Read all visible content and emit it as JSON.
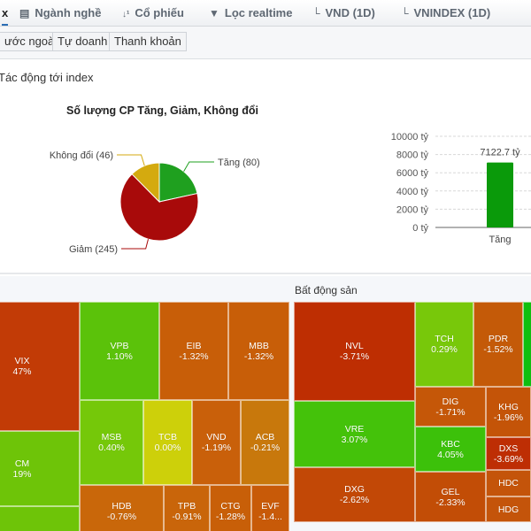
{
  "tabs": [
    {
      "label": "x",
      "icon": "close-icon",
      "active": true
    },
    {
      "label": "Ngành nghề",
      "icon": "list-icon"
    },
    {
      "label": "Cổ phiếu",
      "icon": "sort-numeric-icon"
    },
    {
      "label": "Lọc realtime",
      "icon": "filter-icon"
    },
    {
      "label": "VND (1D)",
      "icon": "chart-icon"
    },
    {
      "label": "VNINDEX (1D)",
      "icon": "chart-icon"
    }
  ],
  "subtabs": [
    "ước ngoài",
    "Tự doanh",
    "Thanh khoản"
  ],
  "section_title": "Tác động tới index",
  "colors": {
    "up": "#1fa01f",
    "down": "#a80a0a",
    "unchanged": "#d4aa0f",
    "bar": "#0a9a0a",
    "active_tab": "#2a6db5"
  },
  "chart_data": [
    {
      "type": "pie",
      "title": "Số lượng CP Tăng, Giảm, Không đổi",
      "slices": [
        {
          "name": "Tăng",
          "value": 80,
          "label": "Tăng (80)",
          "color": "#1fa01f"
        },
        {
          "name": "Giảm",
          "value": 245,
          "label": "Giảm (245)",
          "color": "#a80a0a"
        },
        {
          "name": "Không đổi",
          "value": 46,
          "label": "Không đổi (46)",
          "color": "#d4aa0f"
        }
      ]
    },
    {
      "type": "bar",
      "categories": [
        "Tăng"
      ],
      "values": [
        7122.7
      ],
      "data_labels": [
        "7122.7 tỷ"
      ],
      "yticks": [
        "0 tỷ",
        "2000 tỷ",
        "4000 tỷ",
        "6000 tỷ",
        "8000 tỷ",
        "10000 tỷ"
      ],
      "ylim": [
        0,
        10000
      ],
      "grid": true
    }
  ],
  "treemaps": {
    "left": {
      "cells": [
        {
          "ticker": "VIX",
          "change": "47%",
          "color": "#c23b06"
        },
        {
          "ticker": "VPB",
          "change": "1.10%",
          "color": "#5bc20a"
        },
        {
          "ticker": "EIB",
          "change": "-1.32%",
          "color": "#c85e08"
        },
        {
          "ticker": "MBB",
          "change": "-1.32%",
          "color": "#c85e08"
        },
        {
          "ticker": "CM",
          "change": "19%",
          "color": "#6ec408"
        },
        {
          "ticker": "MSB",
          "change": "0.40%",
          "color": "#75c809"
        },
        {
          "ticker": "TCB",
          "change": "0.00%",
          "color": "#cdd00a"
        },
        {
          "ticker": "VND",
          "change": "-1.19%",
          "color": "#c9600a"
        },
        {
          "ticker": "ACB",
          "change": "-0.21%",
          "color": "#c8780c"
        },
        {
          "ticker": "HDB",
          "change": "-0.76%",
          "color": "#c9670a"
        },
        {
          "ticker": "TPB",
          "change": "-0.91%",
          "color": "#c9650a"
        },
        {
          "ticker": "CTG",
          "change": "-1.28%",
          "color": "#c85f08"
        },
        {
          "ticker": "EVF",
          "change": "-1.4...",
          "color": "#c85a08"
        },
        {
          "ticker": "",
          "change": "",
          "color": "#6ec408"
        }
      ]
    },
    "right": {
      "title": "Bất động sản",
      "cells": [
        {
          "ticker": "NVL",
          "change": "-3.71%",
          "color": "#be2e02"
        },
        {
          "ticker": "TCH",
          "change": "0.29%",
          "color": "#78c80a"
        },
        {
          "ticker": "PDR",
          "change": "-1.52%",
          "color": "#c45a08"
        },
        {
          "ticker": "",
          "change": "",
          "color": "#0fbf0f"
        },
        {
          "ticker": "VRE",
          "change": "3.07%",
          "color": "#44c20a"
        },
        {
          "ticker": "DIG",
          "change": "-1.71%",
          "color": "#c55708"
        },
        {
          "ticker": "KHG",
          "change": "-1.96%",
          "color": "#c45408"
        },
        {
          "ticker": "KBC",
          "change": "4.05%",
          "color": "#3cc10a"
        },
        {
          "ticker": "DXS",
          "change": "-3.69%",
          "color": "#be2e04"
        },
        {
          "ticker": "DXG",
          "change": "-2.62%",
          "color": "#c24806"
        },
        {
          "ticker": "GEL",
          "change": "-2.33%",
          "color": "#c24d06"
        },
        {
          "ticker": "HDC",
          "change": "",
          "color": "#c4540a"
        },
        {
          "ticker": "HDG",
          "change": "",
          "color": "#c4540a"
        }
      ]
    }
  }
}
